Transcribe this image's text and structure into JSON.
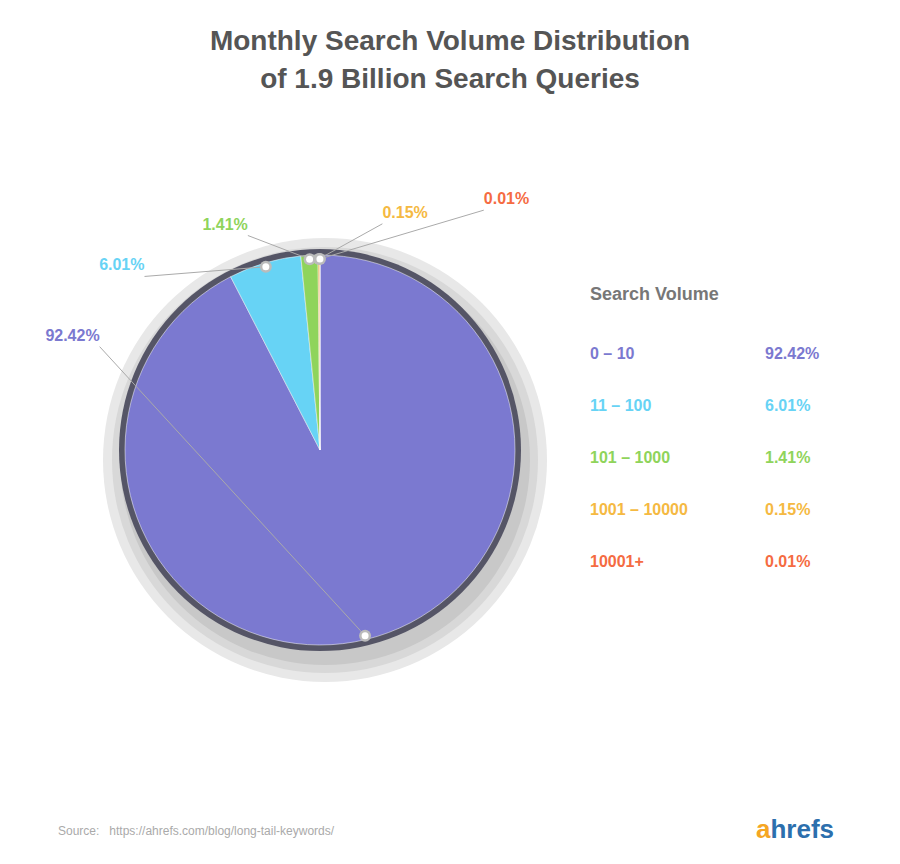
{
  "chart_data": {
    "type": "pie",
    "title": "Monthly Search Volume Distribution",
    "subtitle": "of 1.9 Billion Search Queries",
    "categories": [
      "0 – 10",
      "11 – 100",
      "101 – 1000",
      "1001 – 10000",
      "10001+"
    ],
    "values": [
      92.42,
      6.01,
      1.41,
      0.15,
      0.01
    ],
    "value_labels": [
      "92.42%",
      "6.01%",
      "1.41%",
      "0.15%",
      "0.01%"
    ],
    "colors": [
      "#7b79d0",
      "#67d3f5",
      "#8fd45b",
      "#f5b942",
      "#f56b42"
    ],
    "data_labels": true,
    "legend": "right",
    "legend_title": "Search Volume",
    "annotations": [
      {
        "text": "Source:   https://ahrefs.com/blog/long-tail-keywords/",
        "color": "#aaaaaa"
      },
      {
        "text": "a",
        "color": "#f5a623"
      },
      {
        "text": "hrefs",
        "color": "#2c6fad"
      }
    ]
  }
}
